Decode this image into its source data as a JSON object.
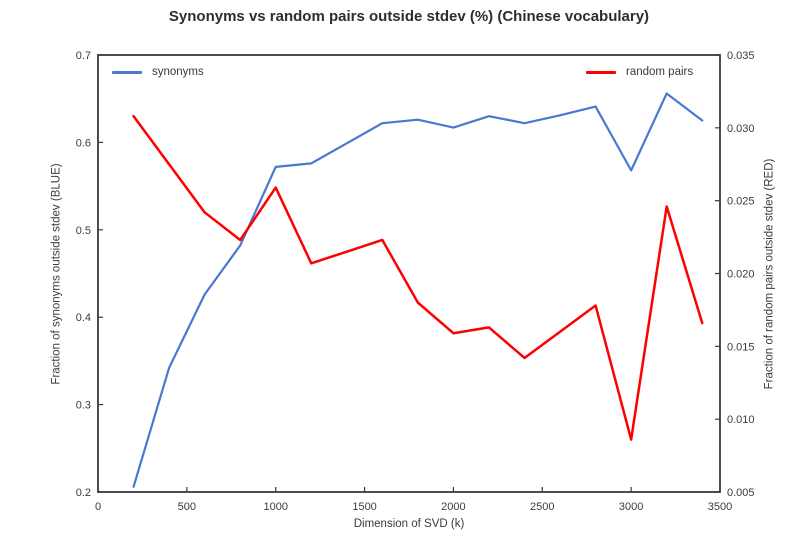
{
  "colors": {
    "axis": "#3a3a3a",
    "text": "#3b3b3b",
    "background": "#ffffff",
    "synonyms_blue": "#4878d0",
    "random_red": "#fd0000"
  },
  "chart_data": {
    "type": "line",
    "title": "Synonyms vs random pairs outside stdev (%) (Chinese vocabulary)",
    "xlabel": "Dimension of SVD (k)",
    "ylabel_left": "Fraction of synonyms outside stdev (BLUE)",
    "ylabel_right": "Fraction of random pairs outside stdev (RED)",
    "grid": false,
    "x": [
      200,
      400,
      600,
      800,
      1000,
      1200,
      1400,
      1600,
      1800,
      2000,
      2200,
      2400,
      2600,
      2800,
      3000,
      3200,
      3400
    ],
    "series": [
      {
        "name": "synonyms",
        "axis": "left",
        "color": "#4878d0",
        "legend_position": "top-left",
        "values": [
          0.206,
          0.342,
          0.426,
          0.482,
          0.572,
          0.576,
          0.599,
          0.622,
          0.626,
          0.617,
          0.63,
          0.622,
          0.631,
          0.641,
          0.568,
          0.656,
          0.625
        ]
      },
      {
        "name": "random pairs",
        "axis": "right",
        "color": "#fd0000",
        "legend_position": "top-right",
        "values": [
          0.0308,
          0.0275,
          0.0242,
          0.0223,
          0.0259,
          0.0207,
          0.0215,
          0.0223,
          0.018,
          0.0159,
          0.0163,
          0.0142,
          0.016,
          0.0178,
          0.0086,
          0.0246,
          0.0166
        ]
      }
    ],
    "xlim": [
      0,
      3500
    ],
    "xtick_labels": [
      "0",
      "500",
      "1000",
      "1500",
      "2000",
      "2500",
      "3000",
      "3500"
    ],
    "ylim_left": [
      0.2,
      0.7
    ],
    "ytick_labels_left": [
      "0.2",
      "0.3",
      "0.4",
      "0.5",
      "0.6",
      "0.7"
    ],
    "ylim_right": [
      0.005,
      0.035
    ],
    "ytick_labels_right": [
      "0.005",
      "0.010",
      "0.015",
      "0.020",
      "0.025",
      "0.030",
      "0.035"
    ],
    "legend_entries": [
      "synonyms",
      "random pairs"
    ]
  }
}
